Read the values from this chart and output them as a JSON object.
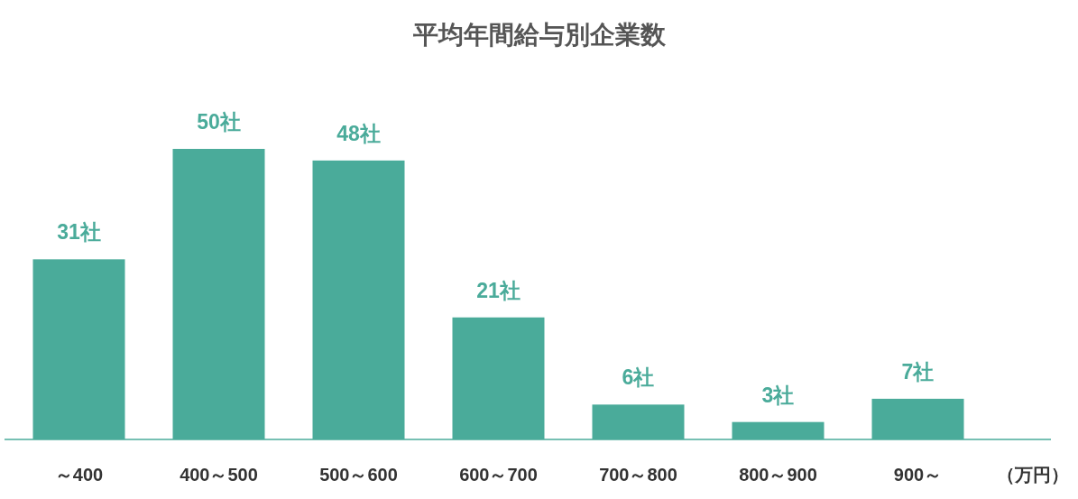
{
  "chart_data": {
    "type": "bar",
    "title": "平均年間給与別企業数",
    "xlabel": "（万円）",
    "categories": [
      "～400",
      "400～500",
      "500～600",
      "600～700",
      "700～800",
      "800～900",
      "900～"
    ],
    "values": [
      31,
      50,
      48,
      21,
      6,
      3,
      7
    ],
    "value_labels": [
      "31社",
      "50社",
      "48社",
      "21社",
      "6社",
      "3社",
      "7社"
    ],
    "color": "#4aab9a"
  }
}
